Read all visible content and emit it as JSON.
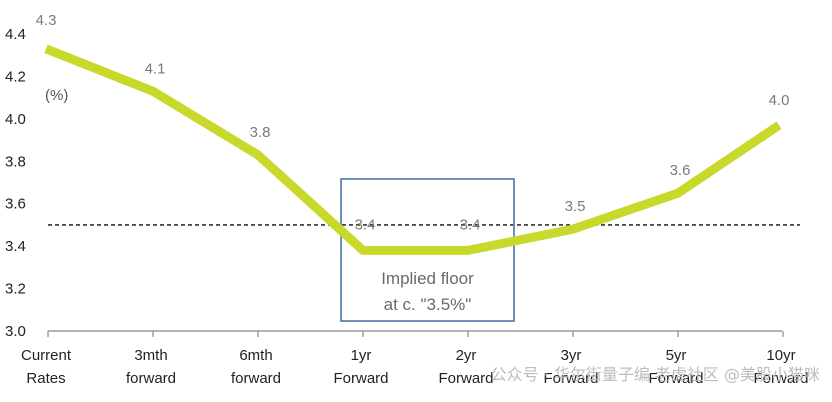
{
  "chart_data": {
    "type": "line",
    "ylabel": "(%)",
    "ylim": [
      3.0,
      4.4
    ],
    "yticks": [
      "3.0",
      "3.2",
      "3.4",
      "3.6",
      "3.8",
      "4.0",
      "4.2",
      "4.4"
    ],
    "categories": [
      [
        "Current",
        "Rates"
      ],
      [
        "3mth",
        "forward"
      ],
      [
        "6mth",
        "forward"
      ],
      [
        "1yr",
        "Forward"
      ],
      [
        "2yr",
        "Forward"
      ],
      [
        "3yr",
        "Forward"
      ],
      [
        "5yr",
        "Forward"
      ],
      [
        "10yr",
        "Forward"
      ]
    ],
    "series": [
      {
        "values": [
          4.33,
          4.13,
          3.83,
          3.38,
          3.38,
          3.48,
          3.65,
          3.97
        ]
      }
    ],
    "data_labels": [
      "4.3",
      "4.1",
      "3.8",
      "3.4",
      "3.4",
      "3.5",
      "3.6",
      "4.0"
    ],
    "reference_line": {
      "value": 3.5,
      "style": "dashed"
    },
    "annotation": {
      "lines": [
        "Implied floor",
        "at c. \"3.5%\""
      ],
      "spans_categories": [
        "1yr",
        "2yr"
      ]
    },
    "colors": {
      "line": "#c8d92b",
      "box": "#4a76a8",
      "reference": "#333333",
      "axis": "#888888"
    },
    "grid": false
  },
  "watermark": {
    "text": "公众号 · 华尔街量子编  老虎社区  @美股小猫咪"
  }
}
